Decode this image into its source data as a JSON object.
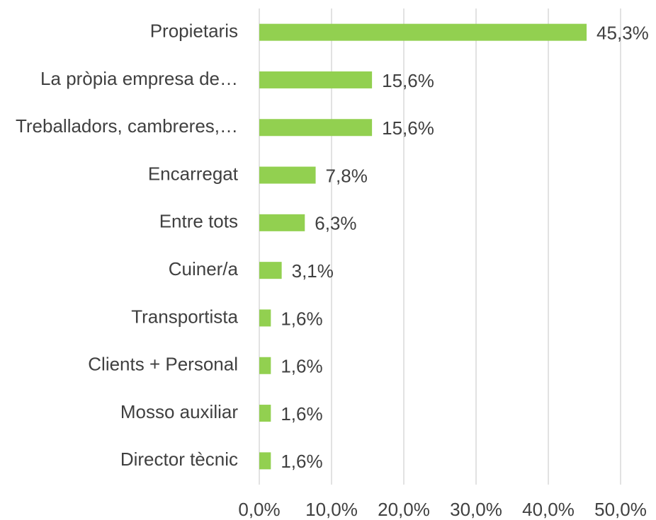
{
  "chart_data": {
    "type": "bar",
    "orientation": "horizontal",
    "categories": [
      "Propietaris",
      "La pròpia empresa de…",
      "Treballadors, cambreres,…",
      "Encarregat",
      "Entre tots",
      "Cuiner/a",
      "Transportista",
      "Clients + Personal",
      "Mosso auxiliar",
      "Director tècnic"
    ],
    "values": [
      45.3,
      15.6,
      15.6,
      7.8,
      6.3,
      3.1,
      1.6,
      1.6,
      1.6,
      1.6
    ],
    "value_labels": [
      "45,3%",
      "15,6%",
      "15,6%",
      "7,8%",
      "6,3%",
      "3,1%",
      "1,6%",
      "1,6%",
      "1,6%",
      "1,6%"
    ],
    "color": "#92d050",
    "xlim": [
      0,
      50
    ],
    "xticks": [
      {
        "value": 0,
        "label": "0,0%"
      },
      {
        "value": 10,
        "label": "10,0%"
      },
      {
        "value": 20,
        "label": "20,0%"
      },
      {
        "value": 30,
        "label": "30,0%"
      },
      {
        "value": 40,
        "label": "40,0%"
      },
      {
        "value": 50,
        "label": "50,0%"
      }
    ],
    "grid": true
  }
}
